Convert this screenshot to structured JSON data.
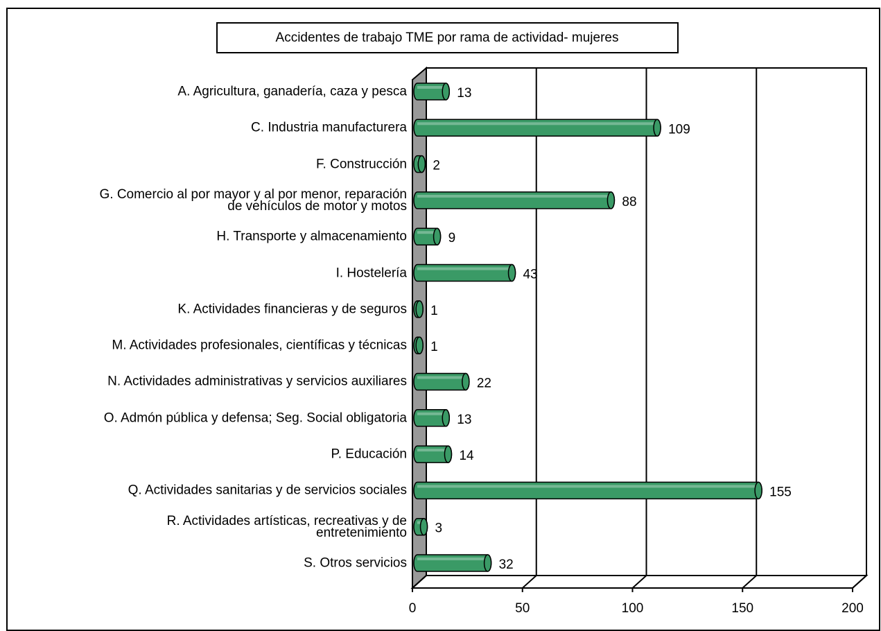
{
  "chart_data": {
    "type": "bar",
    "orientation": "horizontal",
    "title": "Accidentes de trabajo TME por rama de actividad- mujeres",
    "categories": [
      "A. Agricultura, ganadería, caza y pesca",
      "C. Industria manufacturera",
      "F. Construcción",
      "G. Comercio al por mayor y al por menor, reparación\nde vehículos de motor y motos",
      "H. Transporte y almacenamiento",
      "I. Hostelería",
      "K. Actividades financieras y de seguros",
      "M. Actividades profesionales, científicas y técnicas",
      "N. Actividades administrativas y servicios auxiliares",
      "O. Admón pública y defensa; Seg. Social obligatoria",
      "P. Educación",
      "Q. Actividades sanitarias y de servicios sociales",
      "R. Actividades artísticas, recreativas y de\nentretenimiento",
      "S. Otros servicios"
    ],
    "values": [
      13,
      109,
      2,
      88,
      9,
      43,
      1,
      1,
      22,
      13,
      14,
      155,
      3,
      32
    ],
    "color": "#3a9a66",
    "xlim": [
      0,
      200
    ],
    "xticks": [
      0,
      50,
      100,
      150,
      200
    ],
    "grid": true
  }
}
